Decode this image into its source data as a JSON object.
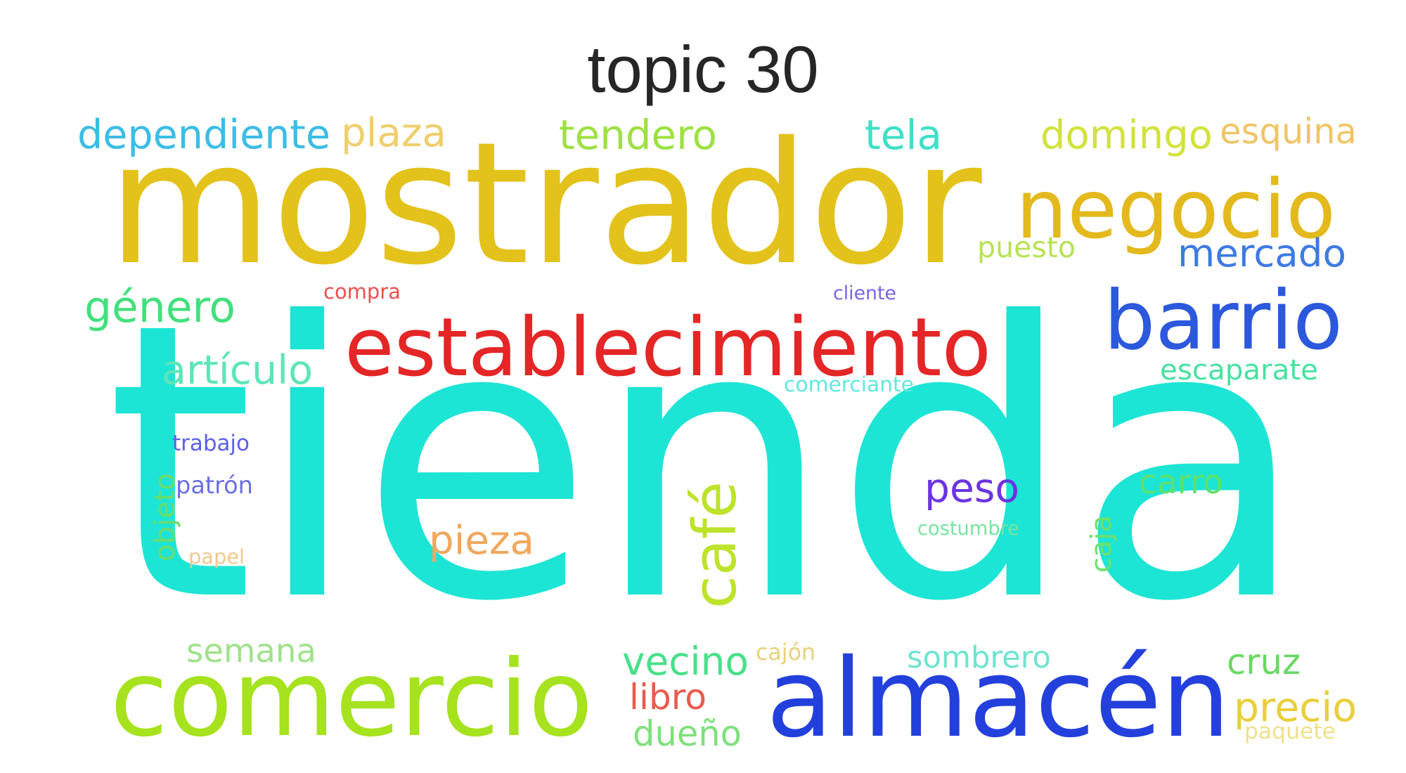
{
  "title": "topic 30",
  "words": [
    {
      "text": "tienda",
      "color": "#1de5d5"
    },
    {
      "text": "mostrador",
      "color": "#e3c21b"
    },
    {
      "text": "establecimiento",
      "color": "#e42626"
    },
    {
      "text": "negocio",
      "color": "#e3b91d"
    },
    {
      "text": "barrio",
      "color": "#2b58dc"
    },
    {
      "text": "almacén",
      "color": "#2340dc"
    },
    {
      "text": "comercio",
      "color": "#a6e21e"
    },
    {
      "text": "café",
      "color": "#bde32a"
    },
    {
      "text": "dependiente",
      "color": "#3bbde6"
    },
    {
      "text": "plaza",
      "color": "#efcf6d"
    },
    {
      "text": "tendero",
      "color": "#9de142"
    },
    {
      "text": "tela",
      "color": "#3ee0c6"
    },
    {
      "text": "domingo",
      "color": "#d3e23c"
    },
    {
      "text": "esquina",
      "color": "#f0c566"
    },
    {
      "text": "mercado",
      "color": "#3d7ae4"
    },
    {
      "text": "puesto",
      "color": "#b8e255"
    },
    {
      "text": "género",
      "color": "#42e07c"
    },
    {
      "text": "artículo",
      "color": "#5fe5b7"
    },
    {
      "text": "escaparate",
      "color": "#47e2a0"
    },
    {
      "text": "compra",
      "color": "#ee4f4f"
    },
    {
      "text": "cliente",
      "color": "#7d63e7"
    },
    {
      "text": "comerciante",
      "color": "#5ee9df"
    },
    {
      "text": "trabajo",
      "color": "#5c61e4"
    },
    {
      "text": "patrón",
      "color": "#6c6fe6"
    },
    {
      "text": "objeto",
      "color": "#68dd6d"
    },
    {
      "text": "papel",
      "color": "#f2c88c"
    },
    {
      "text": "pieza",
      "color": "#f0a85d"
    },
    {
      "text": "peso",
      "color": "#6b34e0"
    },
    {
      "text": "costumbre",
      "color": "#78e4a0"
    },
    {
      "text": "carro",
      "color": "#5de16c"
    },
    {
      "text": "caja",
      "color": "#6de16a"
    },
    {
      "text": "semana",
      "color": "#9fe28a"
    },
    {
      "text": "vecino",
      "color": "#48e08a"
    },
    {
      "text": "cajón",
      "color": "#ead07a"
    },
    {
      "text": "sombrero",
      "color": "#6ee4cf"
    },
    {
      "text": "cruz",
      "color": "#6ad864"
    },
    {
      "text": "libro",
      "color": "#e85b4f"
    },
    {
      "text": "dueño",
      "color": "#7fe07c"
    },
    {
      "text": "precio",
      "color": "#e8cf3c"
    },
    {
      "text": "paquete",
      "color": "#f0e08a"
    }
  ]
}
